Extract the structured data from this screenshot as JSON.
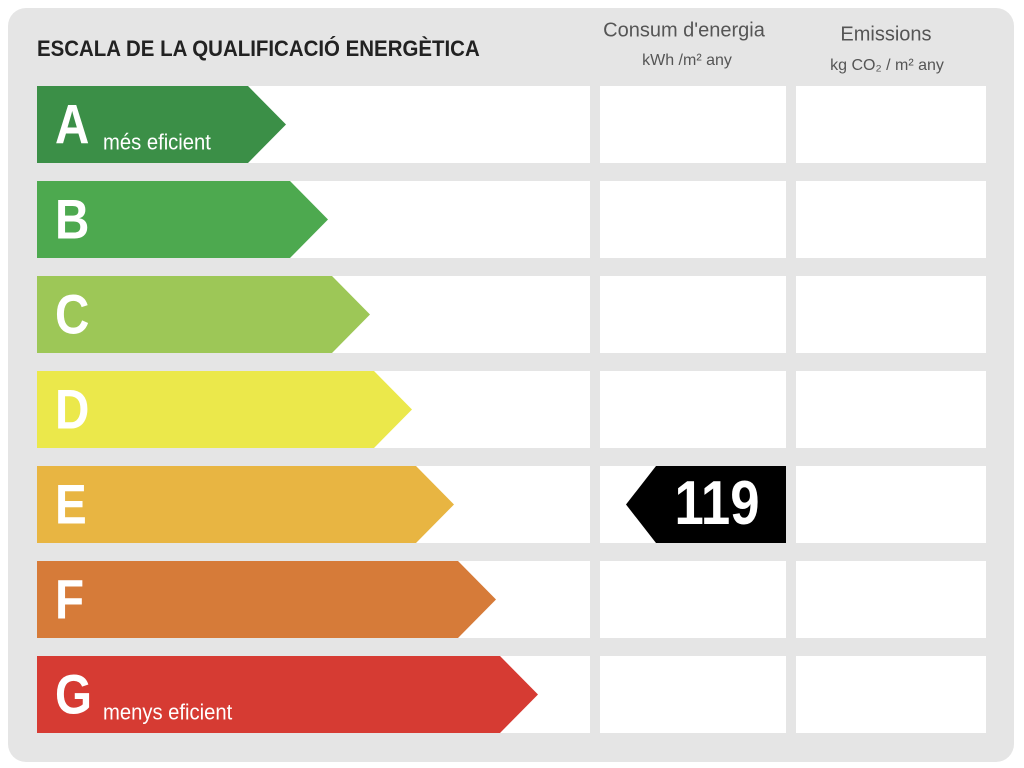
{
  "title": "ESCALA DE LA QUALIFICACIÓ ENERGÈTICA",
  "columns": [
    {
      "title": "Consum d'energia",
      "unit": "kWh /m²  any"
    },
    {
      "title": "Emissions",
      "unit": "kg CO₂  / m²  any"
    }
  ],
  "rows": [
    {
      "letter": "A",
      "label": "més eficient",
      "color": "#3b8f47"
    },
    {
      "letter": "B",
      "color": "#4da94f"
    },
    {
      "letter": "C",
      "color": "#9dc757"
    },
    {
      "letter": "D",
      "color": "#ebe84b"
    },
    {
      "letter": "E",
      "color": "#e8b542",
      "energy": 119
    },
    {
      "letter": "F",
      "color": "#d67b39"
    },
    {
      "letter": "G",
      "label": "menys eficient",
      "color": "#d63b33"
    }
  ]
}
